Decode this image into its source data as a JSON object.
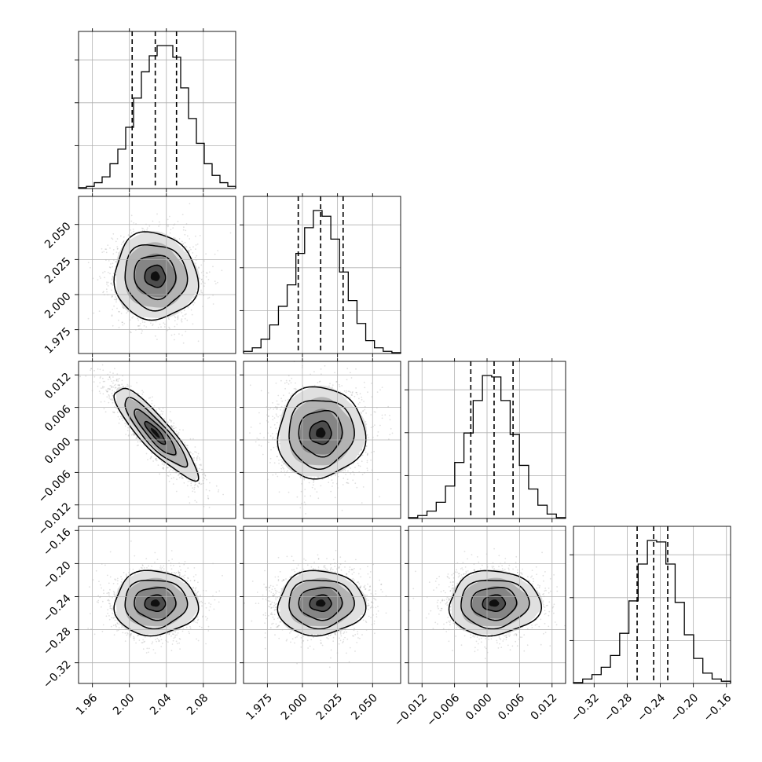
{
  "chart_data": {
    "type": "corner",
    "grid": true,
    "params": [
      {
        "mean": 2.028,
        "sigma": 0.0225,
        "quantiles": [
          2.003,
          2.028,
          2.051
        ],
        "range": [
          1.945,
          2.115
        ],
        "ticks": [
          1.96,
          2.0,
          2.04,
          2.08
        ],
        "tick_labels": [
          "1.96",
          "2.00",
          "2.04",
          "2.08"
        ],
        "hist_counts": [
          0.6,
          1.5,
          4,
          8,
          17,
          27,
          42,
          62,
          80,
          91,
          98,
          98,
          90,
          69,
          48,
          31,
          17,
          9,
          4,
          1.5
        ]
      },
      {
        "mean": 2.013,
        "sigma": 0.0155,
        "quantiles": [
          1.997,
          2.013,
          2.029
        ],
        "range": [
          1.958,
          2.07
        ],
        "ticks": [
          1.975,
          2.0,
          2.025,
          2.05
        ],
        "tick_labels": [
          "1.975",
          "2.000",
          "2.025",
          "2.050"
        ],
        "hist_counts": [
          1.5,
          4,
          10,
          20,
          33,
          48,
          70,
          88,
          100,
          96,
          80,
          57,
          37,
          21,
          9,
          4,
          1.5,
          0.6
        ]
      },
      {
        "mean": 0.0013,
        "sigma": 0.0042,
        "quantiles": [
          -0.003,
          0.0013,
          0.0048
        ],
        "range": [
          -0.0145,
          0.0145
        ],
        "ticks": [
          -0.012,
          -0.006,
          0.0,
          0.006,
          0.012
        ],
        "tick_labels": [
          "−0.012",
          "−0.006",
          "0.000",
          "0.006",
          "0.012"
        ],
        "hist_counts": [
          0.6,
          2,
          5,
          11,
          22,
          38,
          58,
          80,
          97,
          96,
          80,
          57,
          36,
          20,
          9,
          3,
          0.6
        ]
      },
      {
        "mean": -0.248,
        "sigma": 0.0195,
        "quantiles": [
          -0.268,
          -0.248,
          -0.231
        ],
        "range": [
          -0.345,
          -0.155
        ],
        "ticks": [
          -0.32,
          -0.28,
          -0.24,
          -0.2,
          -0.16
        ],
        "tick_labels": [
          "−0.32",
          "−0.28",
          "−0.24",
          "−0.20",
          "−0.16"
        ],
        "hist_counts": [
          0.6,
          3,
          6,
          11,
          19,
          34,
          56,
          81,
          97,
          96,
          81,
          55,
          33,
          17,
          7,
          3,
          1.5
        ]
      }
    ],
    "correlations": [
      {
        "i": 1,
        "j": 0,
        "rho": -0.05
      },
      {
        "i": 2,
        "j": 0,
        "rho": -0.88
      },
      {
        "i": 2,
        "j": 1,
        "rho": 0.02
      },
      {
        "i": 3,
        "j": 0,
        "rho": 0.0
      },
      {
        "i": 3,
        "j": 1,
        "rho": 0.02
      },
      {
        "i": 3,
        "j": 2,
        "rho": 0.03
      }
    ]
  }
}
